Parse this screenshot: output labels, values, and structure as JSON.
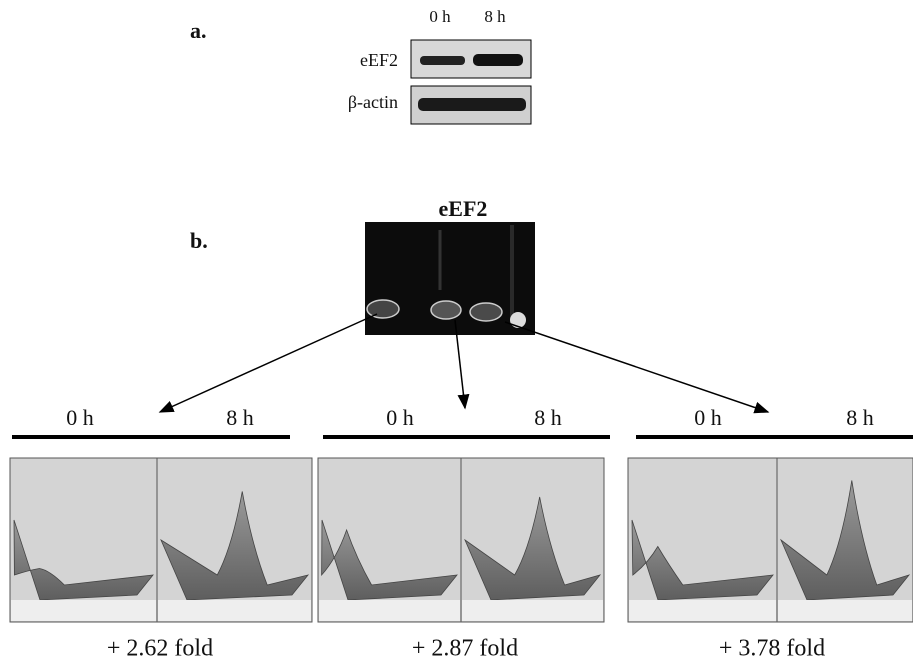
{
  "panel_a": {
    "label": "a.",
    "lanes": [
      "0 h",
      "8 h"
    ],
    "rows": [
      "eEF2",
      "β-actin"
    ]
  },
  "panel_b": {
    "label": "b.",
    "title": "eEF2",
    "comparisons": [
      {
        "left": "0 h",
        "right": "8 h",
        "result": "+ 2.62 fold"
      },
      {
        "left": "0 h",
        "right": "8 h",
        "result": "+ 2.87 fold"
      },
      {
        "left": "0 h",
        "right": "8 h",
        "result": "+ 3.78 fold"
      }
    ]
  }
}
